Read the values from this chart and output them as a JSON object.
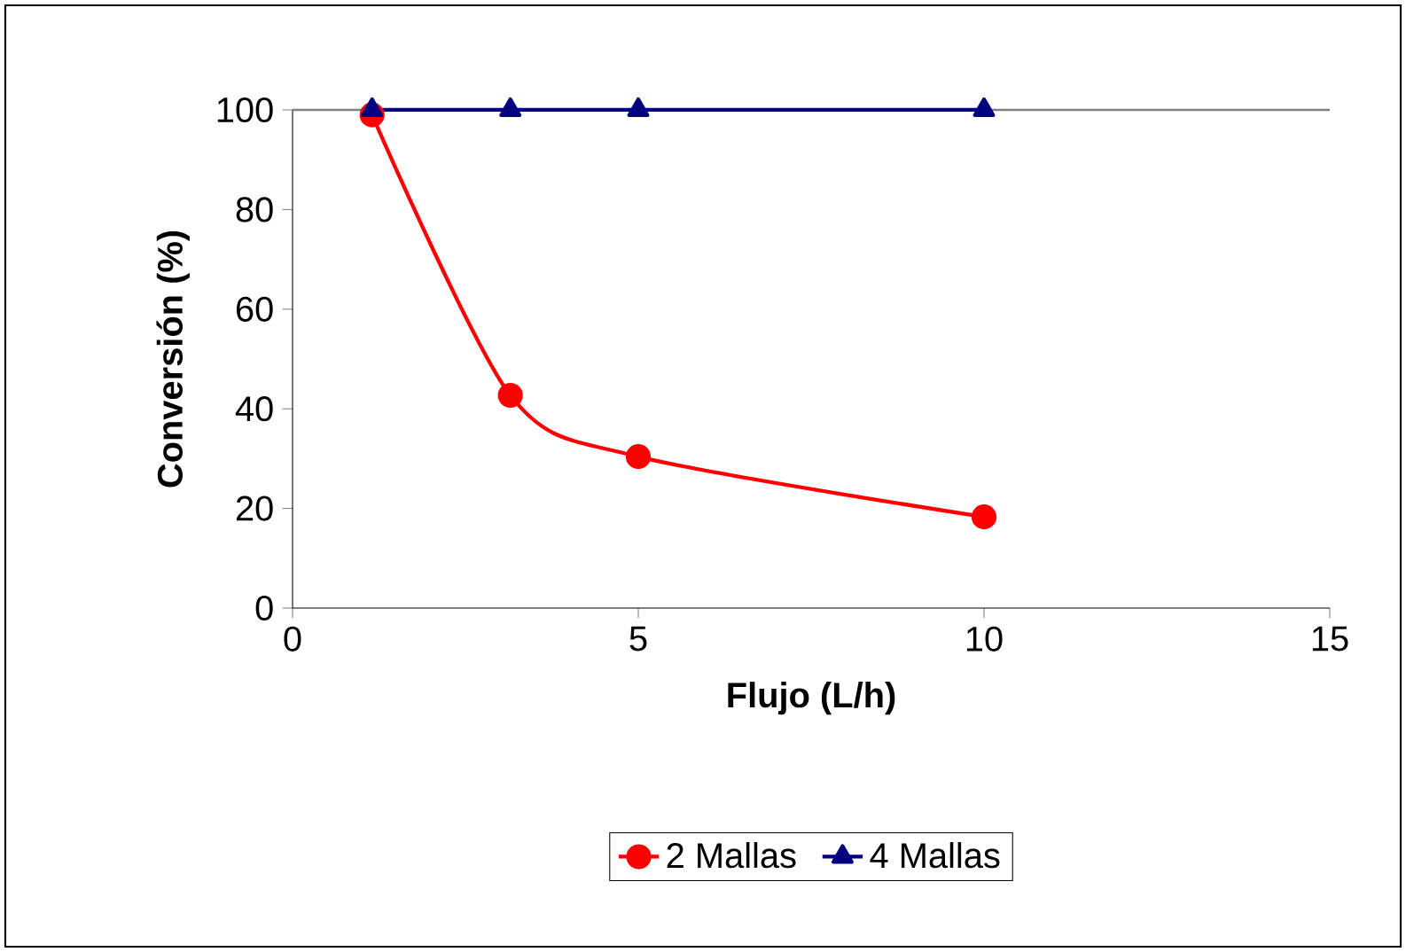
{
  "chart_data": {
    "type": "line",
    "xlabel": "Flujo (L/h)",
    "ylabel": "Conversión (%)",
    "xlim": [
      0,
      15
    ],
    "xticks": [
      0,
      5,
      10,
      15
    ],
    "ylim": [
      0,
      100
    ],
    "yticks": [
      0,
      20,
      40,
      60,
      80,
      100
    ],
    "legend": "bottom",
    "grid": false,
    "series": [
      {
        "name": "2 Mallas",
        "color": "#ff0000",
        "marker": "circle",
        "x": [
          1.15,
          3.15,
          5,
          10
        ],
        "values": [
          99,
          42.7,
          30.4,
          18.3
        ]
      },
      {
        "name": "4 Mallas",
        "color": "#000080",
        "marker": "triangle",
        "x": [
          1.15,
          3.15,
          5,
          10
        ],
        "values": [
          100,
          100,
          100,
          100
        ]
      }
    ]
  }
}
